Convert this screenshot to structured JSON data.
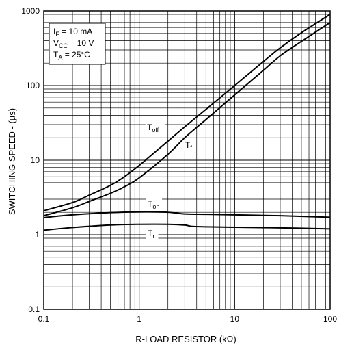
{
  "chart_data": {
    "type": "line",
    "xscale": "log",
    "yscale": "log",
    "xlim": [
      0.1,
      100
    ],
    "ylim": [
      0.1,
      1000
    ],
    "grid": true,
    "xlabel": "R-LOAD RESISTOR (kΩ)",
    "ylabel": "SWITCHING SPEED - (µs)",
    "xticks": [
      "0.1",
      "1",
      "10",
      "100"
    ],
    "yticks": [
      "0.1",
      "1",
      "10",
      "100",
      "1000"
    ],
    "conditions": [
      {
        "main": "I",
        "sub": "F",
        "rest": " = 10 mA"
      },
      {
        "main": "V",
        "sub": "CC",
        "rest": " = 10 V"
      },
      {
        "main": "T",
        "sub": "A",
        "rest": " = 25°C"
      }
    ],
    "series": [
      {
        "name": "Toff",
        "label_main": "T",
        "label_sub": "off",
        "x": [
          0.1,
          0.2,
          0.3,
          0.5,
          0.7,
          1,
          2,
          3,
          5,
          10,
          20,
          30,
          50,
          100
        ],
        "y": [
          2.1,
          2.7,
          3.4,
          4.6,
          6.0,
          8.5,
          18,
          28,
          48,
          100,
          210,
          320,
          510,
          900
        ]
      },
      {
        "name": "Tf",
        "label_main": "T",
        "label_sub": "f",
        "x": [
          0.1,
          0.2,
          0.3,
          0.5,
          0.7,
          1,
          2,
          3,
          5,
          10,
          20,
          30,
          50,
          100
        ],
        "y": [
          1.8,
          2.3,
          2.8,
          3.6,
          4.4,
          5.8,
          12,
          20,
          35,
          75,
          160,
          250,
          390,
          700
        ]
      },
      {
        "name": "Ton",
        "label_main": "T",
        "label_sub": "on",
        "x": [
          0.1,
          0.2,
          0.5,
          1,
          2,
          3,
          5,
          10,
          30,
          100
        ],
        "y": [
          1.7,
          1.85,
          1.98,
          2.02,
          2.0,
          1.9,
          1.88,
          1.85,
          1.8,
          1.72
        ]
      },
      {
        "name": "Tr",
        "label_main": "T",
        "label_sub": "r",
        "x": [
          0.1,
          0.2,
          0.5,
          1,
          2,
          3,
          3.5,
          5,
          10,
          30,
          100
        ],
        "y": [
          1.15,
          1.25,
          1.35,
          1.38,
          1.38,
          1.35,
          1.3,
          1.28,
          1.26,
          1.24,
          1.2
        ]
      }
    ]
  }
}
